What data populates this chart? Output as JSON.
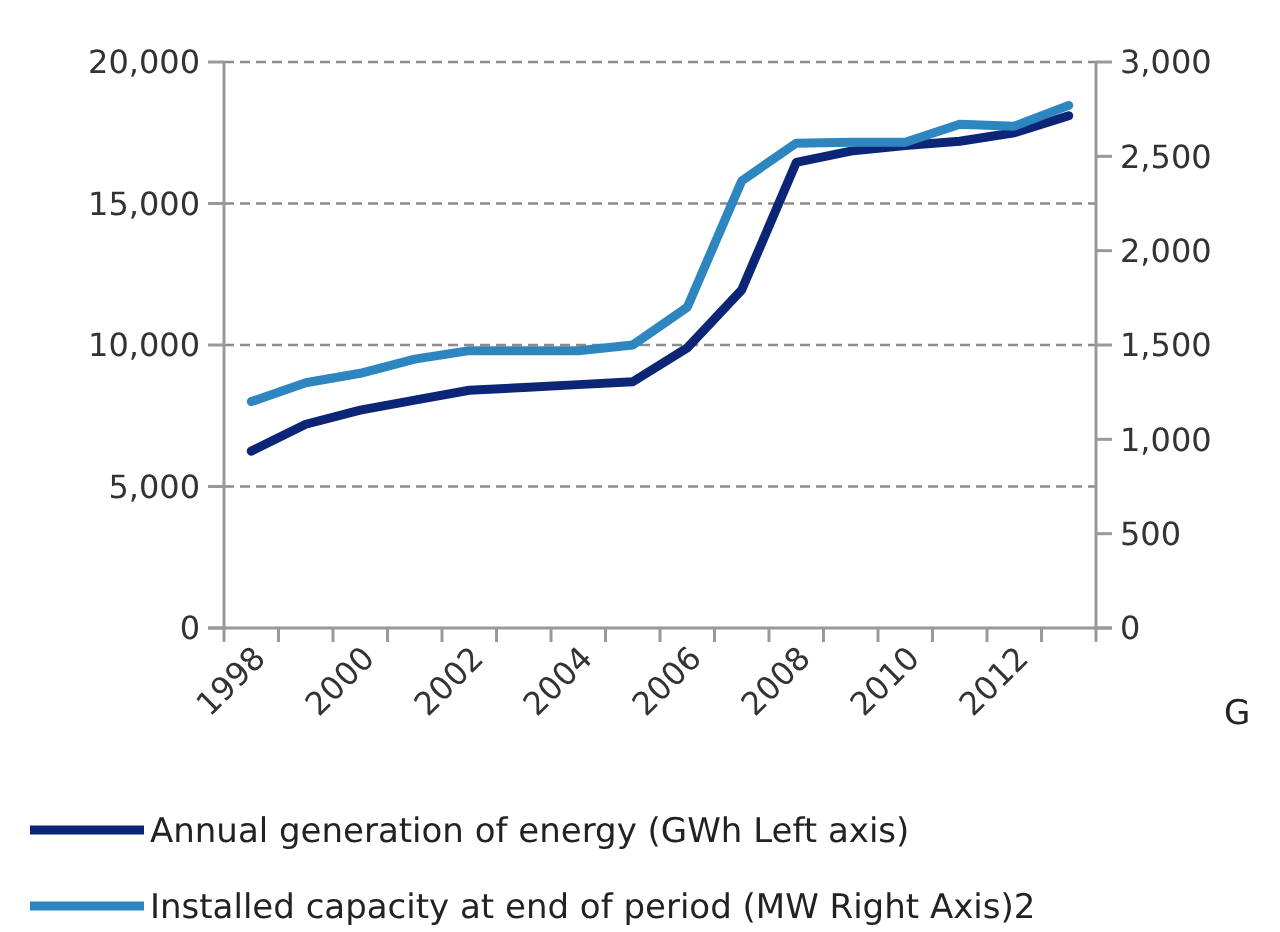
{
  "chart_data": {
    "type": "line",
    "categories": [
      "1998",
      null,
      "2000",
      null,
      "2002",
      null,
      "2004",
      null,
      "2006",
      null,
      "2008",
      null,
      "2010",
      null,
      "2012",
      null
    ],
    "series": [
      {
        "name": "Annual generation of energy (GWh Left axis)",
        "color": "#0c2577",
        "values": [
          6250,
          7200,
          7700,
          8050,
          8400,
          8500,
          8600,
          8700,
          9900,
          11950,
          16450,
          16850,
          17050,
          17200,
          17500,
          18100
        ]
      },
      {
        "name": "Installed capacity at end of period (MW Right Axis)2",
        "color": "#2e86c1",
        "axis": "y2",
        "values": [
          1200,
          1300,
          1350,
          1425,
          1470,
          1470,
          1470,
          1500,
          1700,
          2370,
          2570,
          2575,
          2575,
          2670,
          2660,
          2770
        ]
      }
    ],
    "ylim": [
      0,
      20000
    ],
    "yticks": [
      {
        "value": 0,
        "label": "0"
      },
      {
        "value": 5000,
        "label": "5,000"
      },
      {
        "value": 10000,
        "label": "10,000"
      },
      {
        "value": 15000,
        "label": "15,000"
      },
      {
        "value": 20000,
        "label": "20,000"
      }
    ],
    "y2lim": [
      0,
      3000
    ],
    "y2ticks": [
      {
        "value": 0,
        "label": "0"
      },
      {
        "value": 500,
        "label": "500"
      },
      {
        "value": 1000,
        "label": "1,000"
      },
      {
        "value": 1500,
        "label": "1,500"
      },
      {
        "value": 2000,
        "label": "2,000"
      },
      {
        "value": 2500,
        "label": "2,500"
      },
      {
        "value": 3000,
        "label": "3,000"
      }
    ],
    "grid": "y",
    "legend": "bottom",
    "marker": "none",
    "line_style": "solid",
    "annotations": [
      "G"
    ]
  }
}
